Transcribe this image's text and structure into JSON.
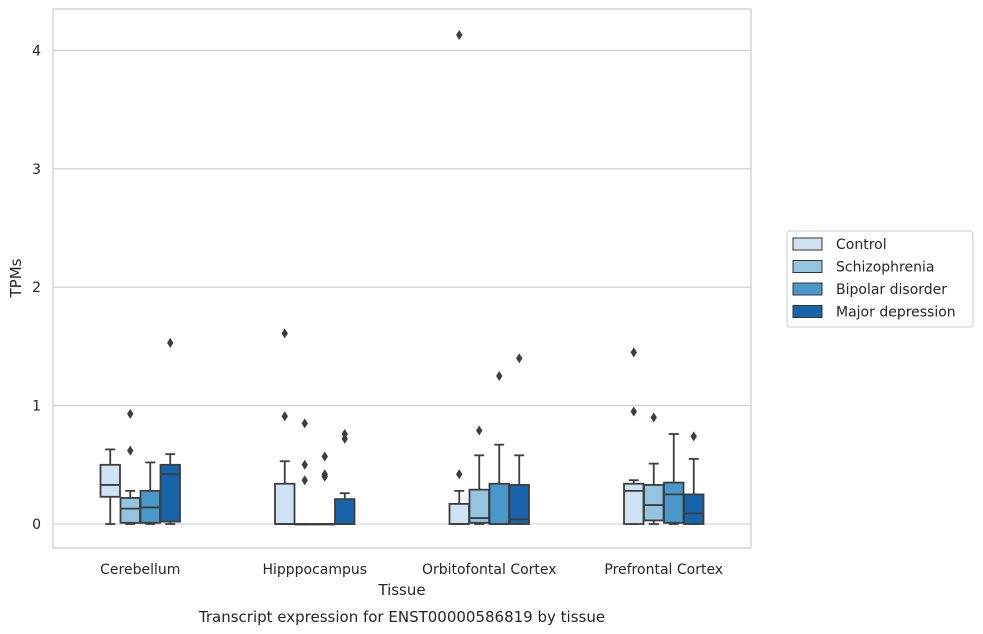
{
  "chart_data": {
    "type": "box",
    "xlabel": "Tissue",
    "ylabel": "TPMs",
    "caption": "Transcript expression for ENST00000586819 by tissue",
    "categories": [
      "Cerebellum",
      "Hipppocampus",
      "Orbitofontal Cortex",
      "Prefrontal Cortex"
    ],
    "ylim": [
      -0.2,
      4.35
    ],
    "yticks": [
      0,
      1,
      2,
      3,
      4
    ],
    "grid": true,
    "legend_position": "right",
    "series": [
      {
        "name": "Control",
        "color": "#d0e1f2",
        "boxes": [
          {
            "min": 0,
            "q1": 0.23,
            "median": 0.33,
            "q3": 0.5,
            "max": 0.63,
            "outliers": []
          },
          {
            "min": 0,
            "q1": 0,
            "median": 0,
            "q3": 0.34,
            "max": 0.53,
            "outliers": [
              0.91,
              1.61
            ]
          },
          {
            "min": 0,
            "q1": 0,
            "median": 0,
            "q3": 0.17,
            "max": 0.28,
            "outliers": [
              0.42,
              4.13
            ]
          },
          {
            "min": 0,
            "q1": 0,
            "median": 0.28,
            "q3": 0.34,
            "max": 0.37,
            "outliers": [
              0.95,
              1.45
            ]
          }
        ]
      },
      {
        "name": "Schizophrenia",
        "color": "#94c4df",
        "boxes": [
          {
            "min": 0,
            "q1": 0.01,
            "median": 0.13,
            "q3": 0.22,
            "max": 0.28,
            "outliers": [
              0.62,
              0.93
            ]
          },
          {
            "min": 0,
            "q1": 0,
            "median": 0,
            "q3": 0,
            "max": 0,
            "outliers": [
              0.37,
              0.5,
              0.85
            ]
          },
          {
            "min": 0,
            "q1": 0.01,
            "median": 0.05,
            "q3": 0.29,
            "max": 0.58,
            "outliers": [
              0.79
            ]
          },
          {
            "min": 0,
            "q1": 0.03,
            "median": 0.16,
            "q3": 0.33,
            "max": 0.51,
            "outliers": [
              0.9
            ]
          }
        ]
      },
      {
        "name": "Bipolar disorder",
        "color": "#4a98c9",
        "boxes": [
          {
            "min": 0,
            "q1": 0.01,
            "median": 0.14,
            "q3": 0.28,
            "max": 0.52,
            "outliers": []
          },
          {
            "min": 0,
            "q1": 0,
            "median": 0,
            "q3": 0,
            "max": 0,
            "outliers": [
              0.4,
              0.42,
              0.57
            ]
          },
          {
            "min": 0,
            "q1": 0,
            "median": 0,
            "q3": 0.34,
            "max": 0.67,
            "outliers": [
              1.25
            ]
          },
          {
            "min": 0,
            "q1": 0.01,
            "median": 0.25,
            "q3": 0.35,
            "max": 0.76,
            "outliers": []
          }
        ]
      },
      {
        "name": "Major depression",
        "color": "#1764ab",
        "boxes": [
          {
            "min": 0,
            "q1": 0.02,
            "median": 0.42,
            "q3": 0.5,
            "max": 0.59,
            "outliers": [
              1.53
            ]
          },
          {
            "min": 0,
            "q1": 0,
            "median": 0,
            "q3": 0.21,
            "max": 0.26,
            "outliers": [
              0.72,
              0.76
            ]
          },
          {
            "min": 0,
            "q1": 0,
            "median": 0.04,
            "q3": 0.33,
            "max": 0.58,
            "outliers": [
              1.4
            ]
          },
          {
            "min": 0,
            "q1": 0,
            "median": 0.09,
            "q3": 0.25,
            "max": 0.55,
            "outliers": [
              0.74
            ]
          }
        ]
      }
    ]
  }
}
